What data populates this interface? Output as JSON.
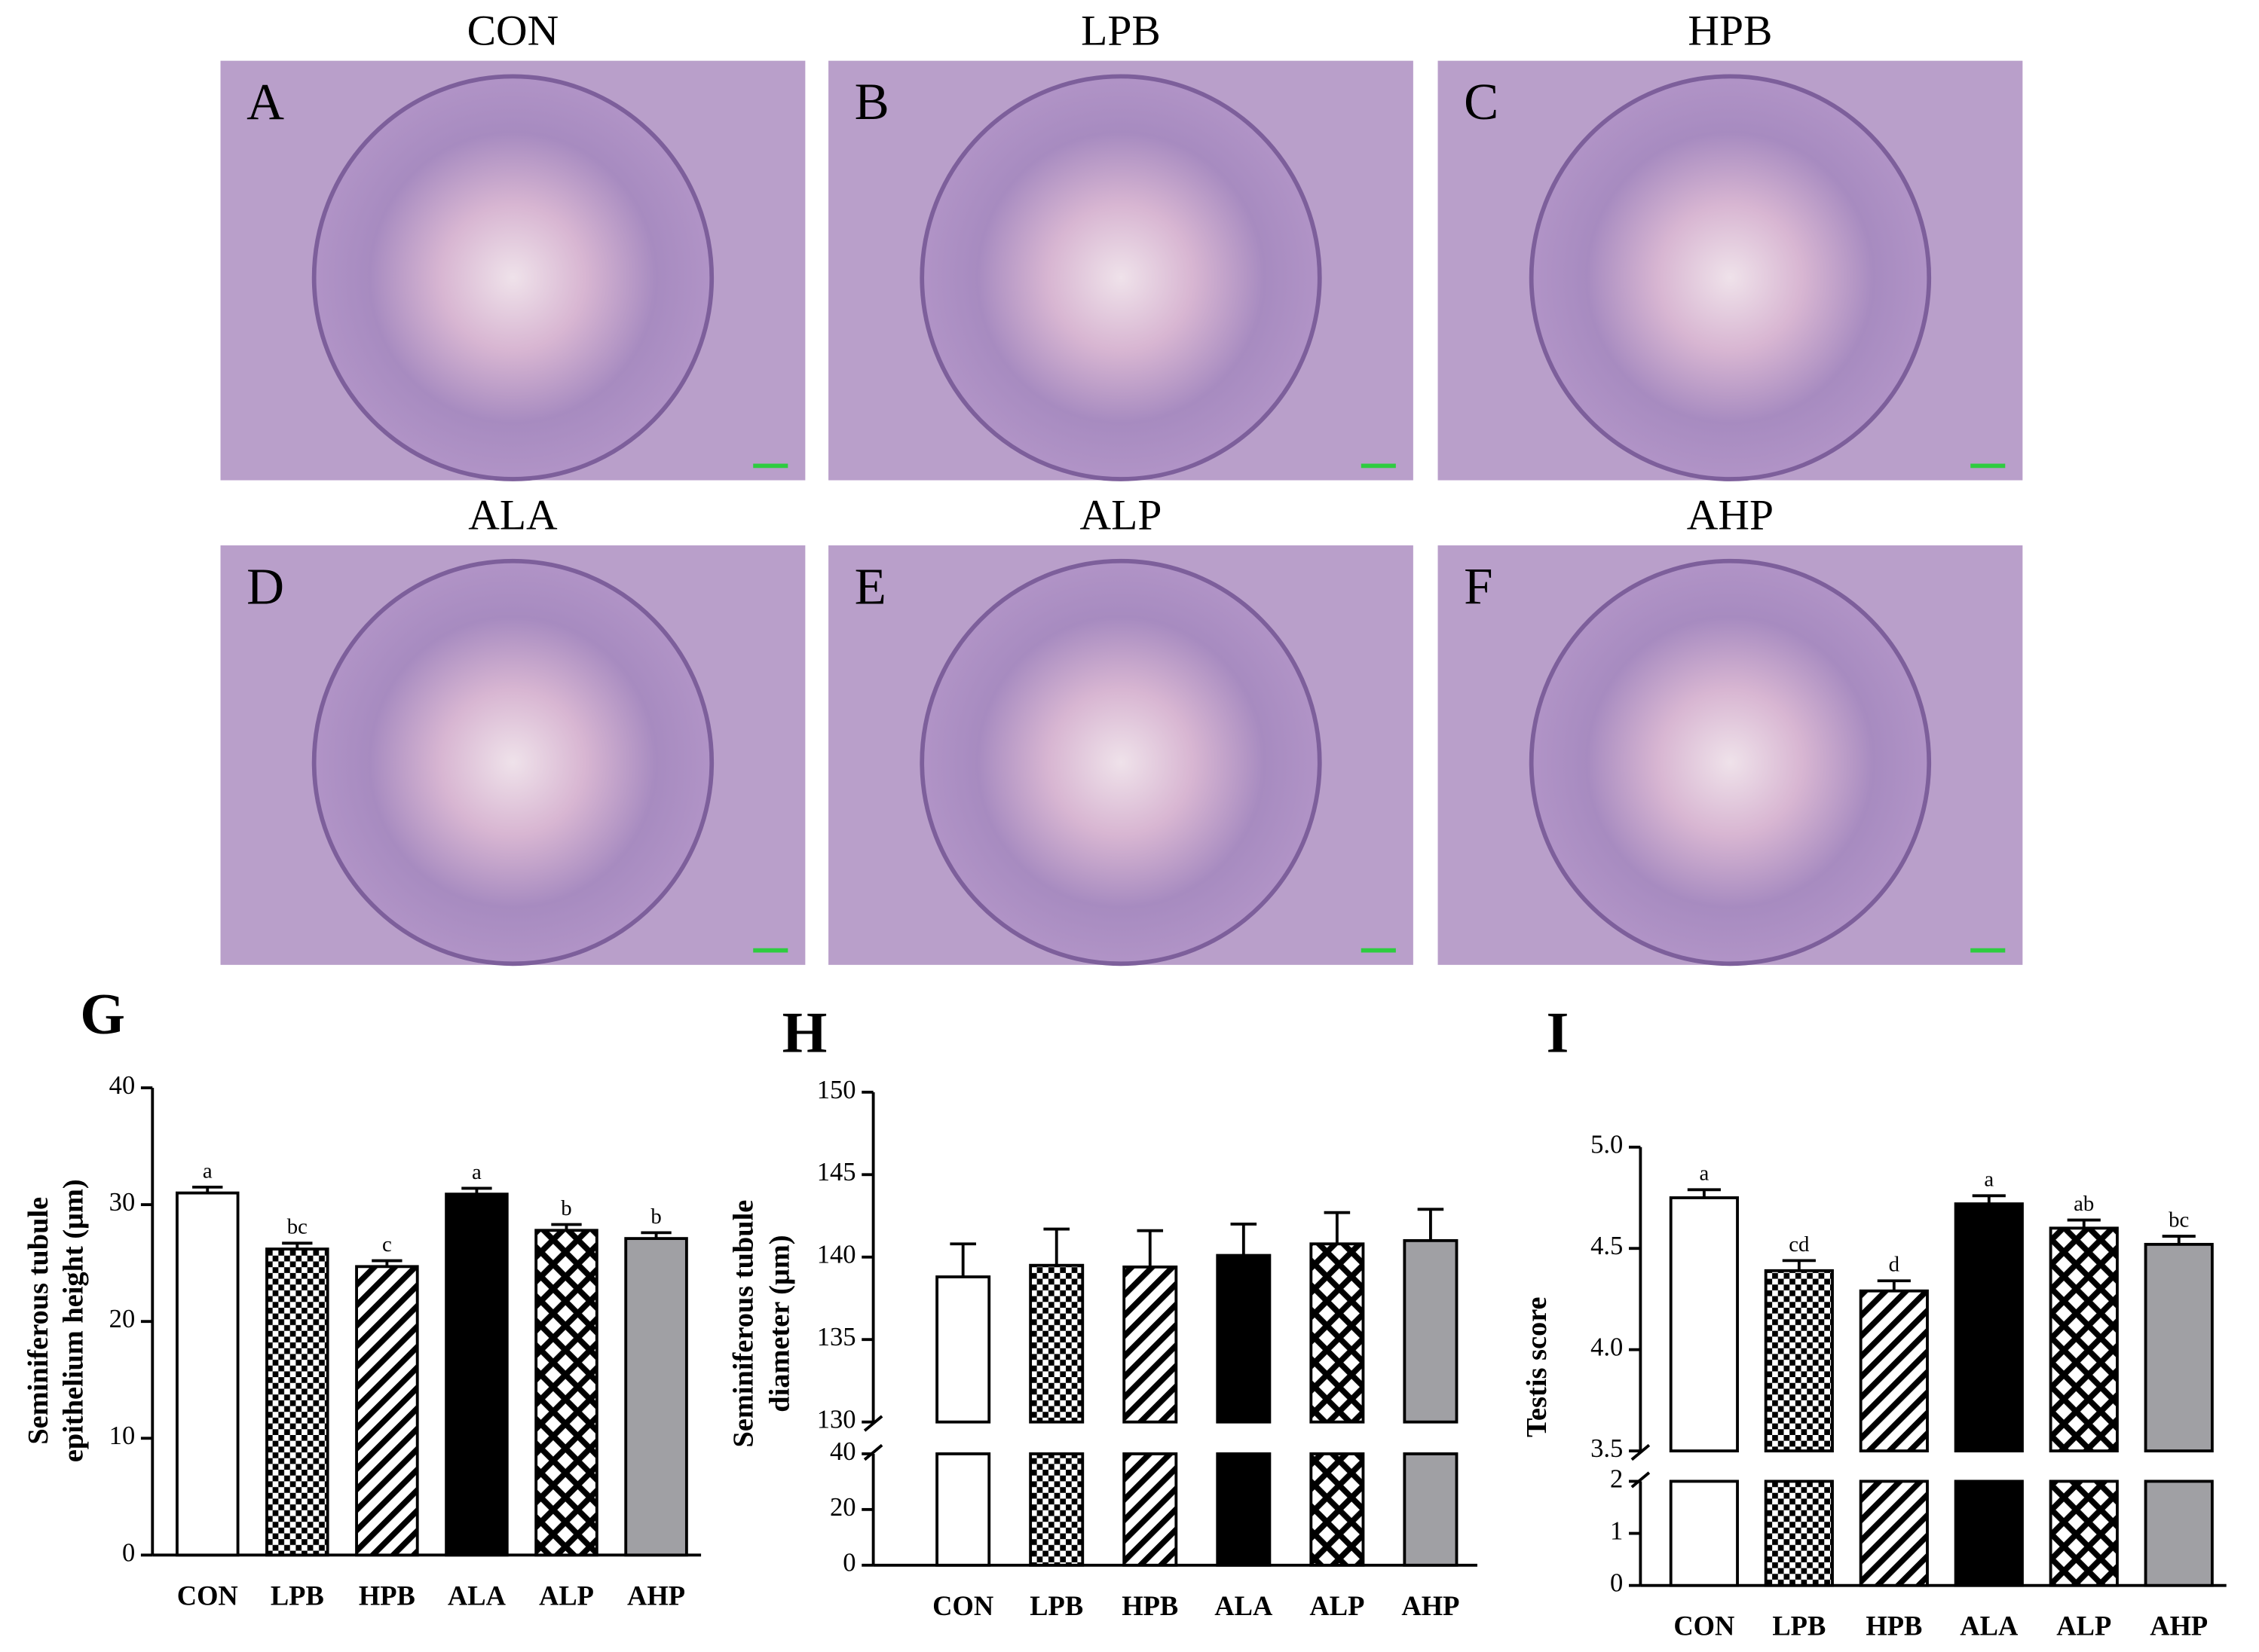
{
  "panels": [
    {
      "label": "A",
      "title": "CON"
    },
    {
      "label": "B",
      "title": "LPB"
    },
    {
      "label": "C",
      "title": "HPB"
    },
    {
      "label": "D",
      "title": "ALA"
    },
    {
      "label": "E",
      "title": "ALP"
    },
    {
      "label": "F",
      "title": "AHP"
    }
  ],
  "chart_data": [
    {
      "type": "bar",
      "panel_label": "G",
      "ylabel": [
        "Seminiferous tubule",
        "epithelium height (μm)"
      ],
      "categories": [
        "CON",
        "LPB",
        "HPB",
        "ALA",
        "ALP",
        "AHP"
      ],
      "values": [
        31.0,
        26.2,
        24.7,
        30.9,
        27.8,
        27.1
      ],
      "errors": [
        0.5,
        0.5,
        0.5,
        0.5,
        0.5,
        0.5
      ],
      "letters": [
        "a",
        "bc",
        "c",
        "a",
        "b",
        "b"
      ],
      "bar_styles": [
        "white",
        "checker",
        "hatch",
        "black",
        "crosshatch",
        "gray"
      ],
      "segments": [
        {
          "ylim": [
            0,
            40
          ],
          "yticks": [
            0,
            10,
            20,
            30,
            40
          ]
        }
      ]
    },
    {
      "type": "bar",
      "panel_label": "H",
      "ylabel": [
        "Seminiferous tubule",
        "diameter (μm)"
      ],
      "categories": [
        "CON",
        "LPB",
        "HPB",
        "ALA",
        "ALP",
        "AHP"
      ],
      "values": [
        138.8,
        139.5,
        139.4,
        140.1,
        140.8,
        141.0
      ],
      "errors": [
        2.0,
        2.2,
        2.2,
        1.9,
        1.9,
        1.9
      ],
      "bar_styles": [
        "white",
        "checker",
        "hatch",
        "black",
        "crosshatch",
        "gray"
      ],
      "segments": [
        {
          "ylim": [
            0,
            40
          ],
          "yticks": [
            0,
            20,
            40
          ]
        },
        {
          "ylim": [
            130,
            150
          ],
          "yticks": [
            130,
            135,
            140,
            145,
            150
          ]
        }
      ]
    },
    {
      "type": "bar",
      "panel_label": "I",
      "ylabel": [
        "Testis score"
      ],
      "categories": [
        "CON",
        "LPB",
        "HPB",
        "ALA",
        "ALP",
        "AHP"
      ],
      "values": [
        4.75,
        4.39,
        4.29,
        4.72,
        4.6,
        4.52
      ],
      "errors": [
        0.04,
        0.05,
        0.05,
        0.04,
        0.04,
        0.04
      ],
      "letters": [
        "a",
        "cd",
        "d",
        "a",
        "ab",
        "bc"
      ],
      "bar_styles": [
        "white",
        "checker",
        "hatch",
        "black",
        "crosshatch",
        "gray"
      ],
      "segments": [
        {
          "ylim": [
            0,
            2
          ],
          "yticks": [
            0,
            1,
            2
          ]
        },
        {
          "ylim": [
            3.5,
            5.0
          ],
          "yticks": [
            3.5,
            {
              "value": 4,
              "label": "4.0"
            },
            4.5,
            {
              "value": 5,
              "label": "5.0"
            }
          ]
        }
      ]
    }
  ]
}
